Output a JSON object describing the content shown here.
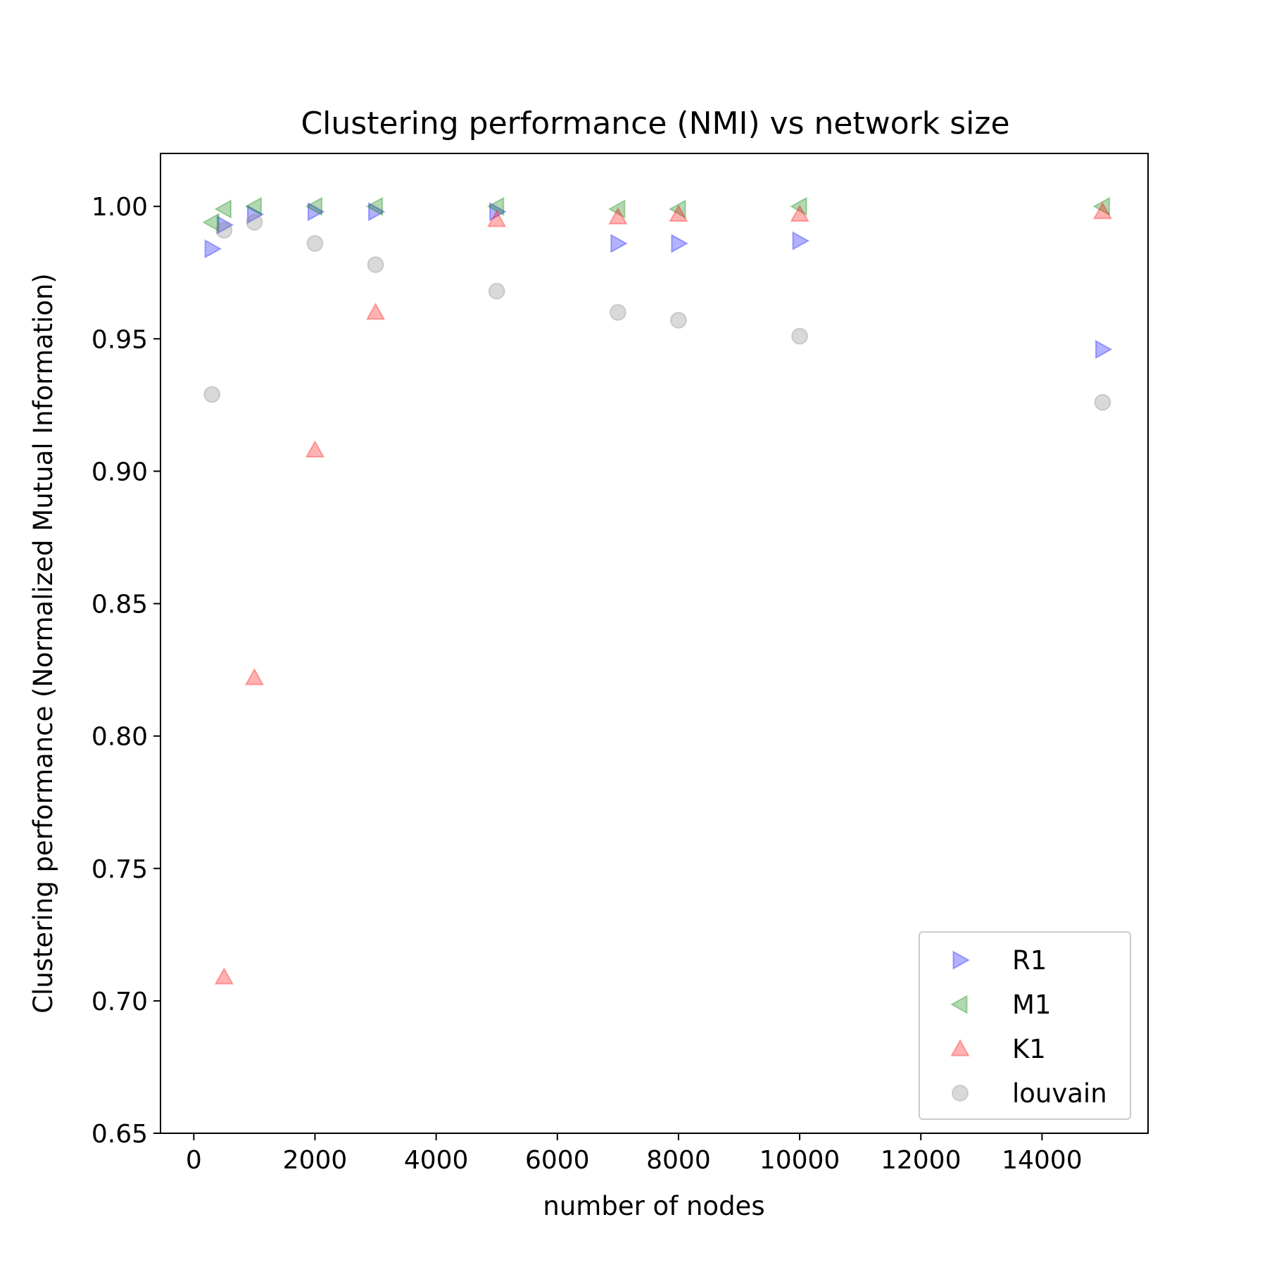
{
  "chart_data": {
    "type": "scatter",
    "title": "Clustering performance (NMI) vs network size",
    "xlabel": "number of nodes",
    "ylabel": "Clustering performance (Normalized Mutual Information)",
    "xlim": [
      -550,
      15750
    ],
    "ylim": [
      0.65,
      1.02
    ],
    "xticks": [
      0,
      2000,
      4000,
      6000,
      8000,
      10000,
      12000,
      14000
    ],
    "xtick_labels": [
      "0",
      "2000",
      "4000",
      "6000",
      "8000",
      "10000",
      "12000",
      "14000"
    ],
    "yticks": [
      0.65,
      0.7,
      0.75,
      0.8,
      0.85,
      0.9,
      0.95,
      1.0
    ],
    "ytick_labels": [
      "0.65",
      "0.70",
      "0.75",
      "0.80",
      "0.85",
      "0.90",
      "0.95",
      "1.00"
    ],
    "grid": false,
    "legend_position": "bottom-right",
    "series": [
      {
        "name": "R1",
        "marker": "triangle-right",
        "color": "#0000ff",
        "points": [
          {
            "x": 300,
            "y": 0.984
          },
          {
            "x": 500,
            "y": 0.993
          },
          {
            "x": 1000,
            "y": 0.997
          },
          {
            "x": 2000,
            "y": 0.998
          },
          {
            "x": 3000,
            "y": 0.998
          },
          {
            "x": 5000,
            "y": 0.998
          },
          {
            "x": 7000,
            "y": 0.986
          },
          {
            "x": 8000,
            "y": 0.986
          },
          {
            "x": 10000,
            "y": 0.987
          },
          {
            "x": 15000,
            "y": 0.946
          }
        ]
      },
      {
        "name": "M1",
        "marker": "triangle-left",
        "color": "#008000",
        "points": [
          {
            "x": 300,
            "y": 0.994
          },
          {
            "x": 500,
            "y": 0.999
          },
          {
            "x": 1000,
            "y": 1.0
          },
          {
            "x": 2000,
            "y": 1.0
          },
          {
            "x": 3000,
            "y": 1.0
          },
          {
            "x": 5000,
            "y": 1.0
          },
          {
            "x": 7000,
            "y": 0.999
          },
          {
            "x": 8000,
            "y": 0.999
          },
          {
            "x": 10000,
            "y": 1.0
          },
          {
            "x": 15000,
            "y": 1.0
          }
        ]
      },
      {
        "name": "K1",
        "marker": "triangle-up",
        "color": "#ff0000",
        "points": [
          {
            "x": 500,
            "y": 0.709
          },
          {
            "x": 1000,
            "y": 0.822
          },
          {
            "x": 2000,
            "y": 0.908
          },
          {
            "x": 3000,
            "y": 0.96
          },
          {
            "x": 5000,
            "y": 0.995
          },
          {
            "x": 7000,
            "y": 0.996
          },
          {
            "x": 8000,
            "y": 0.997
          },
          {
            "x": 10000,
            "y": 0.997
          },
          {
            "x": 15000,
            "y": 0.998
          }
        ]
      },
      {
        "name": "louvain",
        "marker": "circle",
        "color": "#808080",
        "points": [
          {
            "x": 300,
            "y": 0.929
          },
          {
            "x": 500,
            "y": 0.991
          },
          {
            "x": 1000,
            "y": 0.994
          },
          {
            "x": 2000,
            "y": 0.986
          },
          {
            "x": 3000,
            "y": 0.978
          },
          {
            "x": 5000,
            "y": 0.968
          },
          {
            "x": 7000,
            "y": 0.96
          },
          {
            "x": 8000,
            "y": 0.957
          },
          {
            "x": 10000,
            "y": 0.951
          },
          {
            "x": 15000,
            "y": 0.926
          }
        ]
      }
    ]
  }
}
